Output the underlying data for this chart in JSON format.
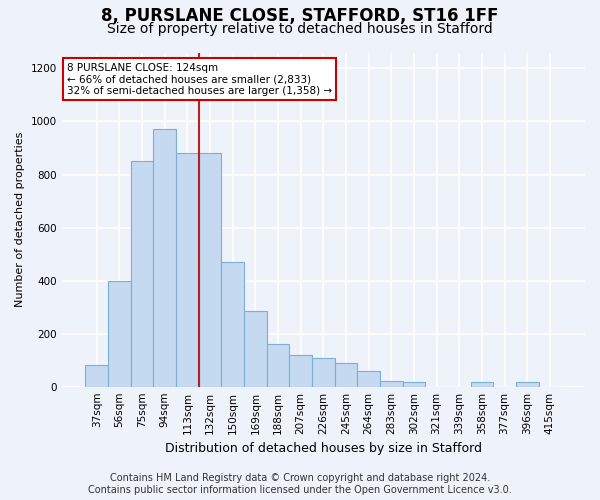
{
  "title_line1": "8, PURSLANE CLOSE, STAFFORD, ST16 1FF",
  "title_line2": "Size of property relative to detached houses in Stafford",
  "xlabel": "Distribution of detached houses by size in Stafford",
  "ylabel": "Number of detached properties",
  "categories": [
    "37sqm",
    "56sqm",
    "75sqm",
    "94sqm",
    "113sqm",
    "132sqm",
    "150sqm",
    "169sqm",
    "188sqm",
    "207sqm",
    "226sqm",
    "245sqm",
    "264sqm",
    "283sqm",
    "302sqm",
    "321sqm",
    "339sqm",
    "358sqm",
    "377sqm",
    "396sqm",
    "415sqm"
  ],
  "values": [
    80,
    400,
    850,
    970,
    880,
    880,
    470,
    285,
    160,
    120,
    110,
    90,
    60,
    20,
    18,
    0,
    0,
    18,
    0,
    18,
    0
  ],
  "bar_color": "#c5d9f0",
  "bar_edge_color": "#7bafd4",
  "vline_x_idx": 4,
  "vline_color": "#b22222",
  "annotation_text": "8 PURSLANE CLOSE: 124sqm\n← 66% of detached houses are smaller (2,833)\n32% of semi-detached houses are larger (1,358) →",
  "annotation_box_facecolor": "white",
  "annotation_box_edgecolor": "#cc0000",
  "ylim": [
    0,
    1260
  ],
  "yticks": [
    0,
    200,
    400,
    600,
    800,
    1000,
    1200
  ],
  "footer_line1": "Contains HM Land Registry data © Crown copyright and database right 2024.",
  "footer_line2": "Contains public sector information licensed under the Open Government Licence v3.0.",
  "bg_color": "#eef2f9",
  "plot_bg_color": "#eef2f9",
  "grid_color": "white",
  "title1_fontsize": 12,
  "title2_fontsize": 10,
  "footer_fontsize": 7,
  "ylabel_fontsize": 8,
  "xlabel_fontsize": 9,
  "tick_fontsize": 7.5,
  "annot_fontsize": 7.5
}
